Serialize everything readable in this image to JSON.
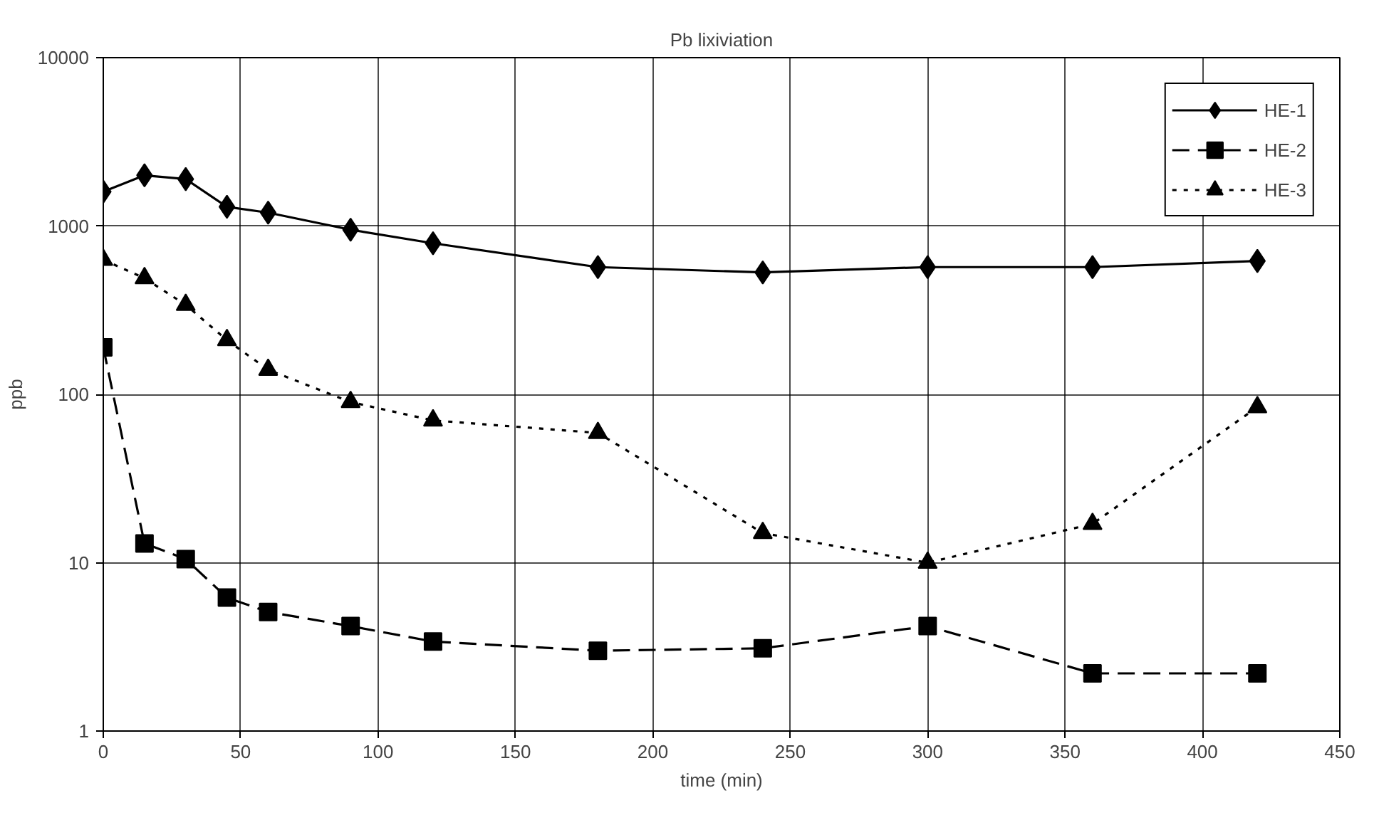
{
  "chart_data": {
    "type": "line",
    "title": "Pb lixiviation",
    "xlabel": "time (min)",
    "ylabel": "ppb",
    "x": [
      0,
      15,
      30,
      45,
      60,
      90,
      120,
      180,
      240,
      300,
      360,
      420
    ],
    "series": [
      {
        "name": "HE-1",
        "color": "#000000",
        "marker": "diamond",
        "line_style": "solid",
        "values": [
          1600,
          2000,
          1900,
          1300,
          1200,
          950,
          790,
          570,
          530,
          570,
          570,
          620
        ]
      },
      {
        "name": "HE-2",
        "color": "#000000",
        "marker": "square",
        "line_style": "dashed",
        "values": [
          190,
          13,
          10.5,
          6.2,
          5.1,
          4.2,
          3.4,
          3.0,
          3.1,
          4.2,
          2.2,
          2.2
        ]
      },
      {
        "name": "HE-3",
        "color": "#000000",
        "marker": "triangle",
        "line_style": "dotted",
        "values": [
          630,
          490,
          340,
          210,
          140,
          90,
          70,
          59,
          15,
          10,
          17,
          84
        ]
      }
    ],
    "xlim": [
      0,
      450
    ],
    "xticks": [
      0,
      50,
      100,
      150,
      200,
      250,
      300,
      350,
      400,
      450
    ],
    "ylim": [
      1,
      10000
    ],
    "yticks": [
      1,
      10,
      100,
      1000,
      10000
    ],
    "log": "y",
    "grid": true,
    "legend": "top right"
  }
}
